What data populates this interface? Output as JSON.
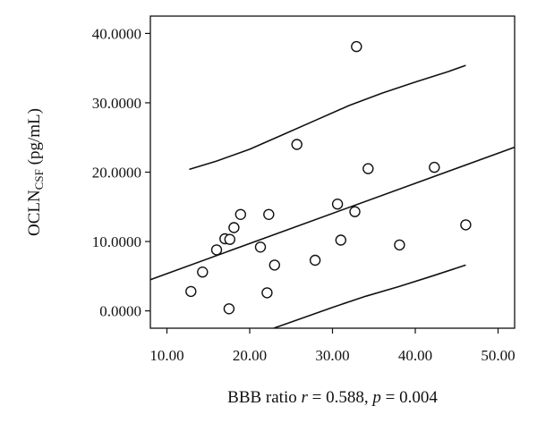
{
  "chart_data": {
    "type": "scatter",
    "xlabel_prefix": "BBB ratio ",
    "xlabel_r_symbol": "r",
    "xlabel_r_value": " = 0.588, ",
    "xlabel_p_symbol": "p",
    "xlabel_p_value": " = 0.004",
    "ylabel_main": "OCLN",
    "ylabel_sub": "CSF",
    "ylabel_unit": " (pg/mL)",
    "xlim": [
      8,
      52
    ],
    "ylim": [
      -2.5,
      42.5
    ],
    "x_ticks": [
      10,
      20,
      30,
      40,
      50
    ],
    "x_tick_labels": [
      "10.00",
      "20.00",
      "30.00",
      "40.00",
      "50.00"
    ],
    "y_ticks": [
      0,
      10,
      20,
      30,
      40
    ],
    "y_tick_labels": [
      "0.0000",
      "10.0000",
      "20.0000",
      "30.0000",
      "40.0000"
    ],
    "grid": false,
    "points": [
      {
        "x": 12.9,
        "y": 2.8
      },
      {
        "x": 14.3,
        "y": 5.6
      },
      {
        "x": 16.0,
        "y": 8.8
      },
      {
        "x": 17.0,
        "y": 10.4
      },
      {
        "x": 17.5,
        "y": 0.3
      },
      {
        "x": 17.6,
        "y": 10.3
      },
      {
        "x": 18.1,
        "y": 12.0
      },
      {
        "x": 18.9,
        "y": 13.9
      },
      {
        "x": 21.3,
        "y": 9.2
      },
      {
        "x": 22.1,
        "y": 2.6
      },
      {
        "x": 22.3,
        "y": 13.9
      },
      {
        "x": 23.0,
        "y": 6.6
      },
      {
        "x": 25.7,
        "y": 24.0
      },
      {
        "x": 27.9,
        "y": 7.3
      },
      {
        "x": 30.6,
        "y": 15.4
      },
      {
        "x": 31.0,
        "y": 10.2
      },
      {
        "x": 32.7,
        "y": 14.3
      },
      {
        "x": 32.9,
        "y": 38.1
      },
      {
        "x": 34.3,
        "y": 20.5
      },
      {
        "x": 38.1,
        "y": 9.5
      },
      {
        "x": 42.3,
        "y": 20.7
      },
      {
        "x": 46.1,
        "y": 12.4
      }
    ],
    "fit_line": [
      [
        8,
        4.5
      ],
      [
        52,
        23.6
      ]
    ],
    "upper_band": [
      [
        12.7,
        20.4
      ],
      [
        16,
        21.6
      ],
      [
        20,
        23.3
      ],
      [
        24,
        25.4
      ],
      [
        28,
        27.5
      ],
      [
        32,
        29.6
      ],
      [
        36,
        31.4
      ],
      [
        40,
        33.0
      ],
      [
        44,
        34.5
      ],
      [
        46.1,
        35.4
      ]
    ],
    "lower_band": [
      [
        22.9,
        -2.5
      ],
      [
        26,
        -1.2
      ],
      [
        30,
        0.5
      ],
      [
        34,
        2.1
      ],
      [
        38,
        3.5
      ],
      [
        42,
        5.0
      ],
      [
        46.1,
        6.6
      ]
    ]
  }
}
